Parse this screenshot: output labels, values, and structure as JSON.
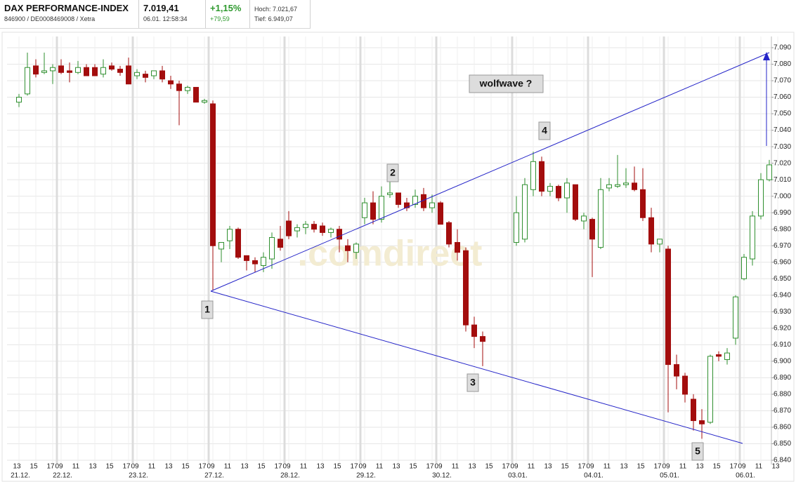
{
  "header": {
    "title": "DAX PERFORMANCE-INDEX",
    "subtitle": "846900 / DE0008469008 / Xetra",
    "price": "7.019,41",
    "timestamp": "06.01. 12:58:34",
    "change_pct": "+1,15%",
    "change_abs": "+79,59",
    "high": "Hoch: 7.021,67",
    "low": "Tief: 6.949,07"
  },
  "chart_data": {
    "type": "candlestick",
    "watermark": ".comdirect",
    "annotations": [
      "1",
      "2",
      "3",
      "4",
      "5",
      "wolfwave ?"
    ],
    "categories": [
      "13",
      null,
      "15",
      null,
      "17",
      "09",
      null,
      "11",
      null,
      "13",
      null,
      "15",
      null,
      "17",
      "09",
      null,
      "11",
      null,
      "13",
      null,
      "15",
      null,
      "17",
      "09",
      null,
      "11",
      null,
      "13",
      null,
      "15",
      null,
      "17",
      "09",
      null,
      "11",
      null,
      "13",
      null,
      "15",
      null,
      "17",
      "09",
      null,
      "11",
      null,
      "13",
      null,
      "15",
      null,
      "17",
      "09",
      null,
      "11",
      null,
      "13",
      null,
      "15",
      null,
      "17",
      "09",
      null,
      "11",
      null,
      "13",
      null,
      "15",
      null,
      "17",
      "09",
      null,
      "11",
      null,
      "13",
      null,
      "15",
      null,
      "17",
      "09",
      null,
      "11",
      null,
      "13",
      null,
      "15",
      null,
      "17",
      "09",
      null,
      "11",
      null,
      "13"
    ],
    "dates": [
      "21.12.",
      null,
      null,
      null,
      null,
      "22.12.",
      null,
      null,
      null,
      null,
      null,
      null,
      null,
      null,
      "23.12.",
      null,
      null,
      null,
      null,
      null,
      null,
      null,
      null,
      "27.12.",
      null,
      null,
      null,
      null,
      null,
      null,
      null,
      null,
      "28.12.",
      null,
      null,
      null,
      null,
      null,
      null,
      null,
      null,
      "29.12.",
      null,
      null,
      null,
      null,
      null,
      null,
      null,
      null,
      "30.12.",
      null,
      null,
      null,
      null,
      null,
      null,
      null,
      null,
      "03.01.",
      null,
      null,
      null,
      null,
      null,
      null,
      null,
      null,
      "04.01.",
      null,
      null,
      null,
      null,
      null,
      null,
      null,
      null,
      "05.01.",
      null,
      null,
      null,
      null,
      null,
      null,
      null,
      null,
      "06.01.",
      null,
      null,
      null,
      null
    ],
    "open": [
      7057,
      7062,
      7079,
      7075,
      7076,
      7079,
      7076,
      7075,
      7078,
      7078,
      7074,
      7079,
      7077,
      7079,
      7073,
      7074,
      7073,
      7076,
      7070,
      7068,
      7064,
      7066,
      7057,
      7056,
      6968,
      6973,
      6980,
      6964,
      6961,
      6958,
      6962,
      6974,
      6985,
      6979,
      6981,
      6983,
      6982,
      6978,
      6980,
      6970,
      6966,
      6987,
      6996,
      6986,
      7001,
      7002,
      6996,
      6995,
      7001,
      6993,
      6996,
      6984,
      6972,
      6967,
      6922,
      6915,
      null,
      null,
      null,
      6972,
      6974,
      7004,
      7021,
      7003,
      7006,
      6999,
      7007,
      6985,
      6986,
      6969,
      7005,
      7006,
      7007,
      7008,
      7004,
      6987,
      6971,
      6968,
      6898,
      6891,
      6877,
      6864,
      6863,
      6904,
      6901,
      6914,
      6950,
      6962,
      6988,
      7010,
      null
    ],
    "high": [
      7062,
      7087,
      7083,
      7087,
      7080,
      7083,
      7081,
      7082,
      7080,
      7080,
      7083,
      7081,
      7079,
      7084,
      7077,
      7076,
      7076,
      7079,
      7073,
      7070,
      7067,
      7066,
      7059,
      7058,
      6972,
      6982,
      6981,
      6964,
      6963,
      6966,
      6978,
      6982,
      6991,
      6983,
      6985,
      6985,
      6984,
      6981,
      6982,
      6974,
      6972,
      6999,
      7003,
      7006,
      7009,
      7002,
      6999,
      7004,
      7005,
      7001,
      6997,
      6985,
      6980,
      6969,
      6927,
      6918,
      null,
      null,
      null,
      7000,
      7011,
      7027,
      7024,
      7008,
      7007,
      7011,
      7007,
      6990,
      6987,
      7011,
      7011,
      7025,
      7017,
      7018,
      7017,
      6993,
      6974,
      6970,
      6904,
      6893,
      6880,
      6871,
      6904,
      6906,
      6908,
      6940,
      6965,
      6991,
      7014,
      7022,
      null
    ],
    "low": [
      7054,
      7061,
      7072,
      7074,
      7068,
      7074,
      7069,
      7074,
      7073,
      7073,
      7072,
      7076,
      7073,
      7068,
      7071,
      7069,
      7071,
      7069,
      7065,
      7043,
      7062,
      7057,
      7056,
      6943,
      6960,
      6968,
      6962,
      6955,
      6954,
      6954,
      6956,
      6967,
      6974,
      6975,
      6977,
      6978,
      6976,
      6975,
      6966,
      6960,
      6962,
      6983,
      6983,
      6984,
      6999,
      6993,
      6991,
      6993,
      6991,
      6990,
      6983,
      6969,
      6961,
      6918,
      6908,
      6897,
      null,
      null,
      null,
      6970,
      6972,
      7000,
      7000,
      7000,
      6997,
      6990,
      6985,
      6980,
      6951,
      6968,
      7003,
      7005,
      7005,
      7003,
      6985,
      6966,
      6966,
      6869,
      6883,
      6875,
      6858,
      6853,
      6862,
      6900,
      6898,
      6910,
      6949,
      6958,
      6986,
      7009,
      null
    ],
    "close": [
      7060,
      7078,
      7074,
      7076,
      7078,
      7075,
      7075,
      7078,
      7073,
      7073,
      7078,
      7077,
      7075,
      7068,
      7075,
      7072,
      7076,
      7071,
      7068,
      7064,
      7066,
      7057,
      7058,
      6970,
      6972,
      6980,
      6963,
      6961,
      6959,
      6963,
      6975,
      6969,
      6976,
      6981,
      6983,
      6980,
      6978,
      6980,
      6974,
      6967,
      6971,
      6996,
      6986,
      7000,
      7002,
      6995,
      6993,
      7000,
      6993,
      6996,
      6983,
      6971,
      6966,
      6922,
      6915,
      6912,
      null,
      null,
      null,
      6990,
      7007,
      7021,
      7003,
      7006,
      6999,
      7008,
      6986,
      6988,
      6974,
      7004,
      7007,
      7007,
      7008,
      7004,
      6987,
      6971,
      6974,
      6898,
      6891,
      6880,
      6864,
      6862,
      6903,
      6903,
      6905,
      6939,
      6963,
      6988,
      7010,
      7019,
      null
    ],
    "colors": {
      "up": "#2f8f2f",
      "down": "#a30d0d"
    },
    "ylim": [
      6840,
      7090
    ],
    "yticks": [
      {
        "value": 6840,
        "label": "6.840"
      },
      {
        "value": 6850,
        "label": "6.850"
      },
      {
        "value": 6860,
        "label": "6.860"
      },
      {
        "value": 6870,
        "label": "6.870"
      },
      {
        "value": 6880,
        "label": "6.880"
      },
      {
        "value": 6890,
        "label": "6.890"
      },
      {
        "value": 6900,
        "label": "6.900"
      },
      {
        "value": 6910,
        "label": "6.910"
      },
      {
        "value": 6920,
        "label": "6.920"
      },
      {
        "value": 6930,
        "label": "6.930"
      },
      {
        "value": 6940,
        "label": "6.940"
      },
      {
        "value": 6950,
        "label": "6.950"
      },
      {
        "value": 6960,
        "label": "6.960"
      },
      {
        "value": 6970,
        "label": "6.970"
      },
      {
        "value": 6980,
        "label": "6.980"
      },
      {
        "value": 6990,
        "label": "6.990"
      },
      {
        "value": 7000,
        "label": "7.000"
      },
      {
        "value": 7010,
        "label": "7.010"
      },
      {
        "value": 7020,
        "label": "7.020"
      },
      {
        "value": 7030,
        "label": "7.030"
      },
      {
        "value": 7040,
        "label": "7.040"
      },
      {
        "value": 7050,
        "label": "7.050"
      },
      {
        "value": 7060,
        "label": "7.060"
      },
      {
        "value": 7070,
        "label": "7.070"
      },
      {
        "value": 7080,
        "label": "7.080"
      },
      {
        "value": 7090,
        "label": "7.090"
      }
    ],
    "grid": true
  }
}
